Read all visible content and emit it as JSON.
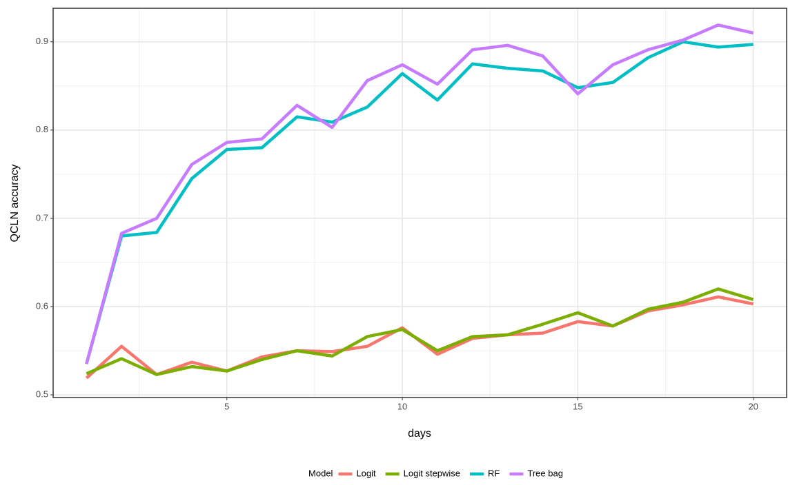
{
  "chart_data": {
    "type": "line",
    "x_label": "days",
    "y_label": "QCLN accuracy",
    "legend_title": "Model",
    "legend_position": "bottom",
    "x": [
      1,
      2,
      3,
      4,
      5,
      6,
      7,
      8,
      9,
      10,
      11,
      12,
      13,
      14,
      15,
      16,
      17,
      18,
      19,
      20
    ],
    "series": [
      {
        "name": "Logit",
        "color": "#F8766D",
        "values": [
          0.519,
          0.555,
          0.523,
          0.537,
          0.527,
          0.543,
          0.55,
          0.549,
          0.555,
          0.576,
          0.546,
          0.564,
          0.568,
          0.57,
          0.583,
          0.578,
          0.595,
          0.602,
          0.611,
          0.603
        ]
      },
      {
        "name": "Logit stepwise",
        "color": "#7CAE00",
        "values": [
          0.524,
          0.541,
          0.523,
          0.532,
          0.527,
          0.54,
          0.55,
          0.544,
          0.566,
          0.574,
          0.55,
          0.566,
          0.568,
          0.58,
          0.593,
          0.578,
          0.597,
          0.605,
          0.62,
          0.608
        ]
      },
      {
        "name": "RF",
        "color": "#00BFC4",
        "values": [
          0.535,
          0.68,
          0.684,
          0.745,
          0.778,
          0.78,
          0.815,
          0.809,
          0.826,
          0.864,
          0.834,
          0.875,
          0.87,
          0.867,
          0.848,
          0.854,
          0.882,
          0.9,
          0.894,
          0.897
        ]
      },
      {
        "name": "Tree bag",
        "color": "#C77CFF",
        "values": [
          0.535,
          0.683,
          0.7,
          0.761,
          0.786,
          0.79,
          0.828,
          0.803,
          0.856,
          0.874,
          0.852,
          0.891,
          0.896,
          0.884,
          0.841,
          0.874,
          0.891,
          0.902,
          0.919,
          0.91
        ]
      }
    ],
    "xlim": [
      0.05,
      20.95
    ],
    "xticks": [
      5,
      10,
      15,
      20
    ],
    "ylim": [
      0.497,
      0.938
    ],
    "yticks": [
      0.5,
      0.6,
      0.7,
      0.8,
      0.9
    ],
    "x_minor_grid": [
      2.5,
      7.5,
      12.5,
      17.5
    ],
    "y_minor_grid": [
      0.55,
      0.65,
      0.75,
      0.85
    ],
    "grid": true
  }
}
